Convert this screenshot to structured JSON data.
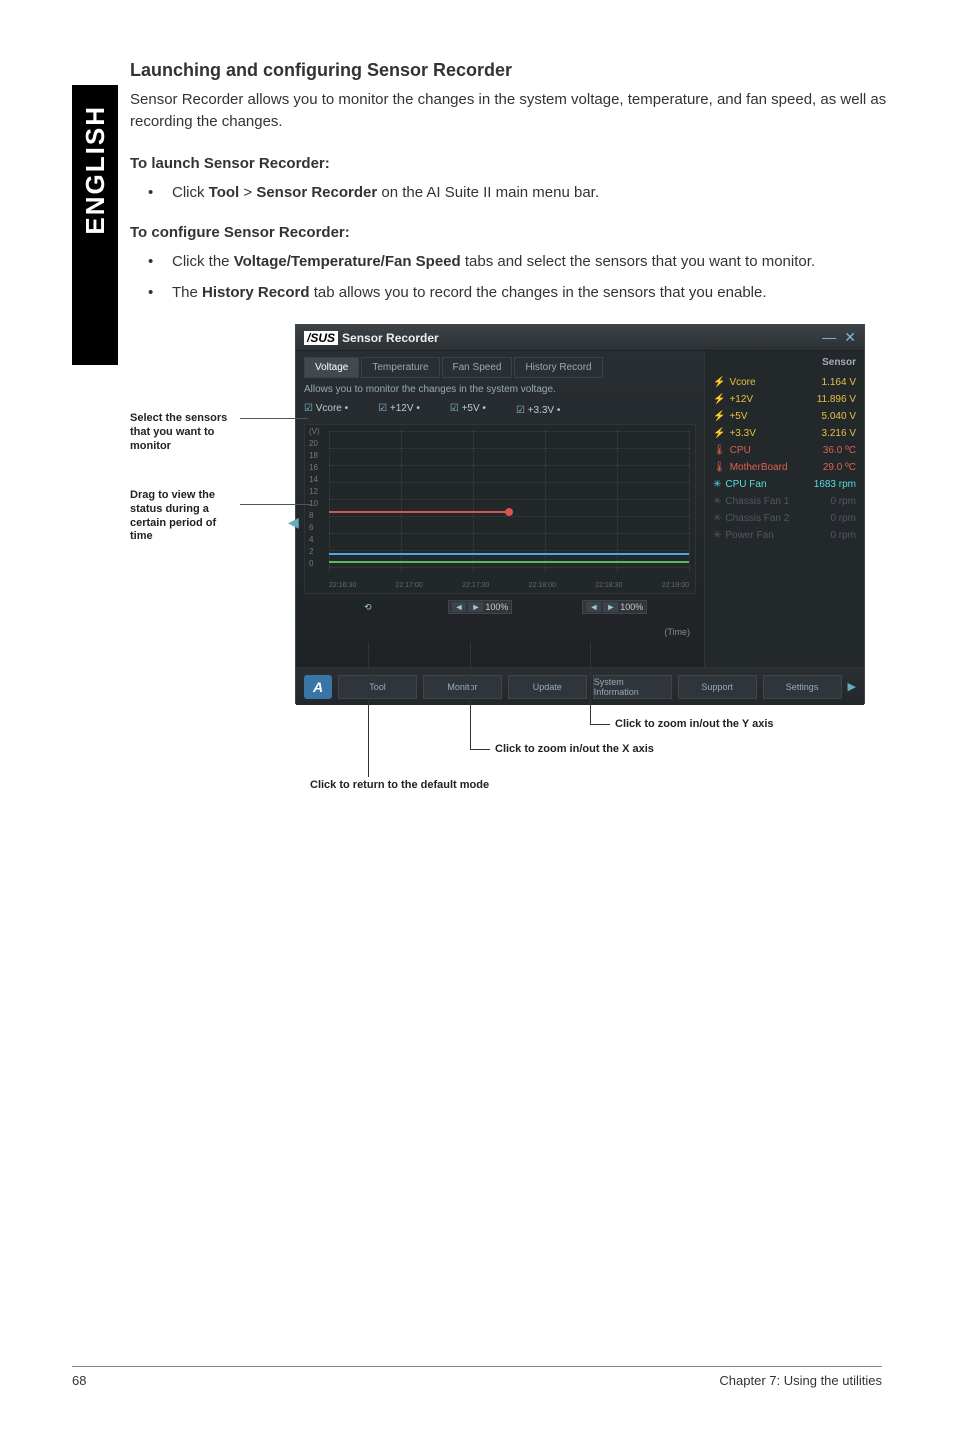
{
  "side_tab": "ENGLISH",
  "heading": "Launching and configuring Sensor Recorder",
  "intro": "Sensor Recorder allows you to monitor the changes in the system voltage, temperature, and fan speed, as well as recording the changes.",
  "launch_heading": "To launch Sensor Recorder:",
  "launch_bullet_pre": "Click ",
  "launch_bullet_b1": "Tool",
  "launch_bullet_mid": " > ",
  "launch_bullet_b2": "Sensor Recorder",
  "launch_bullet_post": " on the AI Suite II main menu bar.",
  "config_heading": "To configure Sensor Recorder:",
  "config_b1_pre": "Click the ",
  "config_b1_bold": "Voltage/Temperature/Fan Speed",
  "config_b1_post": " tabs and select the sensors that you want to monitor.",
  "config_b2_pre": "The ",
  "config_b2_bold": "History Record",
  "config_b2_post": " tab allows you to record the changes in the sensors that you enable.",
  "callouts": {
    "select": "Select the sensors that you want to monitor",
    "drag": "Drag to view the status during a certain period of time",
    "return": "Click to return to the default mode",
    "zoom_x": "Click to zoom in/out the X axis",
    "zoom_y": "Click to zoom in/out the Y axis"
  },
  "app": {
    "brand_asus": "/SUS",
    "brand_rest": "Sensor Recorder",
    "tabs": [
      "Voltage",
      "Temperature",
      "Fan Speed",
      "History Record"
    ],
    "desc": "Allows you to monitor the changes in the system voltage.",
    "checks": [
      "Vcore •",
      "+12V •",
      "+5V •",
      "+3.3V •"
    ],
    "y_unit": "(V)",
    "y_ticks": [
      "20",
      "18",
      "16",
      "14",
      "12",
      "10",
      "8",
      "6",
      "4",
      "2",
      "0"
    ],
    "x_ticks": [
      "22:16:30",
      "22:17:00",
      "22:17:30",
      "22:18:00",
      "22:18:30",
      "22:19:00"
    ],
    "time_label": "(Time)",
    "zoom_x_val": "100%",
    "zoom_y_val": "100%",
    "side_title": "Sensor",
    "sensors": [
      {
        "label": "Vcore",
        "value": "1.164 V",
        "cls": "yellow",
        "ico": "⚡"
      },
      {
        "label": "+12V",
        "value": "11.896 V",
        "cls": "yellow",
        "ico": "⚡"
      },
      {
        "label": "+5V",
        "value": "5.040 V",
        "cls": "yellow",
        "ico": "⚡"
      },
      {
        "label": "+3.3V",
        "value": "3.216 V",
        "cls": "yellow",
        "ico": "⚡"
      },
      {
        "label": "CPU",
        "value": "36.0 ºC",
        "cls": "red",
        "ico": "🌡"
      },
      {
        "label": "MotherBoard",
        "value": "29.0 ºC",
        "cls": "red",
        "ico": "🌡"
      },
      {
        "label": "CPU Fan",
        "value": "1683 rpm",
        "cls": "cyan",
        "ico": "✳"
      },
      {
        "label": "Chassis Fan 1",
        "value": "0 rpm",
        "cls": "dim",
        "ico": "✳"
      },
      {
        "label": "Chassis Fan 2",
        "value": "0 rpm",
        "cls": "dim",
        "ico": "✳"
      },
      {
        "label": "Power Fan",
        "value": "0 rpm",
        "cls": "dim",
        "ico": "✳"
      }
    ],
    "bottom": [
      "Tool",
      "Monitor",
      "Update",
      "System Information",
      "Support",
      "Settings"
    ]
  },
  "footer": {
    "page": "68",
    "chapter": "Chapter 7: Using the utilities"
  }
}
